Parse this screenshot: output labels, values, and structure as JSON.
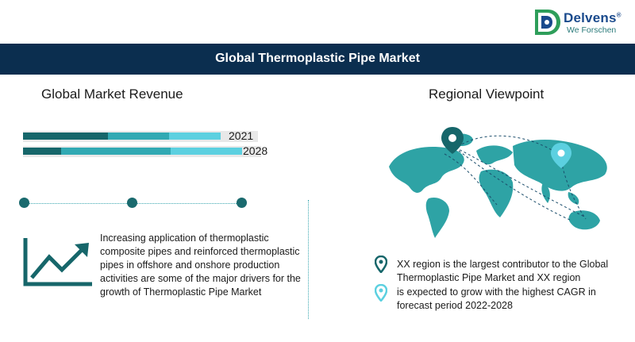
{
  "logo": {
    "brand": "Delvens",
    "registered": "®",
    "tagline": "We Forschen"
  },
  "banner": {
    "title": "Global Thermoplastic Pipe Market"
  },
  "left": {
    "heading": "Global Market Revenue",
    "bars": [
      {
        "year": "2021",
        "segments": [
          0.36,
          0.26,
          0.22
        ]
      },
      {
        "year": "2028",
        "segments": [
          0.16,
          0.46,
          0.3
        ]
      }
    ],
    "colors": {
      "dark": "#16666a",
      "mid": "#31a9b3",
      "light": "#5cd0e0"
    },
    "drivers_text": "Increasing application of thermoplastic composite pipes and reinforced thermoplastic pipes in offshore and onshore production activities are some of the major drivers for the growth of Thermoplastic Pipe Market"
  },
  "right": {
    "heading": "Regional Viewpoint",
    "largest_text": "XX region is the largest contributor to the Global Thermoplastic Pipe Market and XX region",
    "growth_text": "is expected to grow with the highest CAGR in forecast period 2022-2028",
    "colors": {
      "pin_dark": "#16666a",
      "pin_light": "#5cd0e0",
      "map": "#2ea3a5"
    }
  }
}
